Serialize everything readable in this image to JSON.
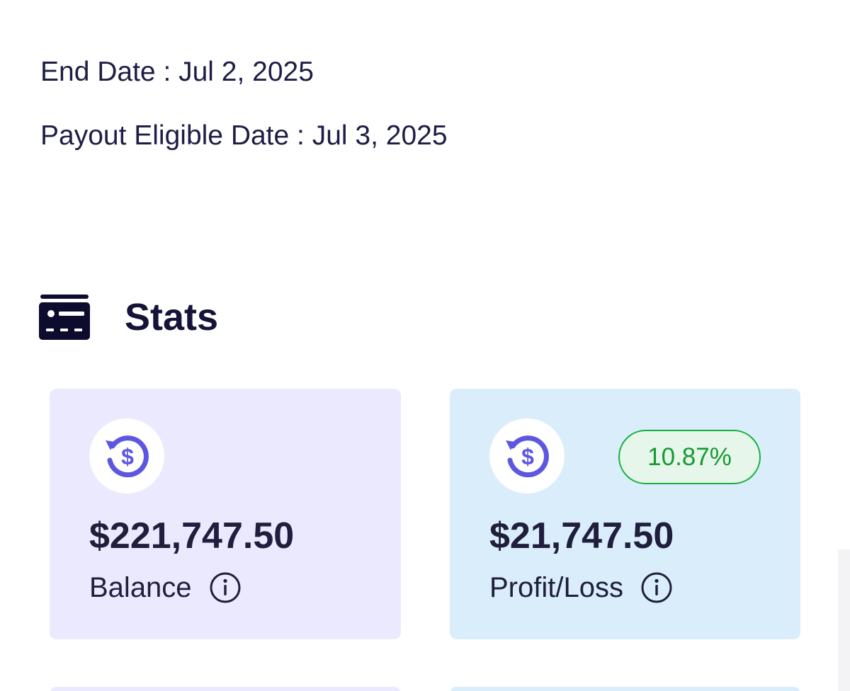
{
  "dates": {
    "end_date": "End Date : Jul 2, 2025",
    "payout_eligible_date": "Payout Eligible Date : Jul 3, 2025"
  },
  "stats": {
    "title": "Stats",
    "icon": "id-card-icon"
  },
  "cards": {
    "balance": {
      "amount": "$221,747.50",
      "label": "Balance",
      "icon": "dollar-refresh-icon",
      "info_icon": "info-icon",
      "background": "#ebe9fd"
    },
    "profit_loss": {
      "amount": "$21,747.50",
      "label": "Profit/Loss",
      "badge": "10.87%",
      "icon": "dollar-refresh-icon",
      "info_icon": "info-icon",
      "background": "#d9edfb"
    }
  },
  "colors": {
    "accent": "#5b57e0",
    "positive": "#17b03f",
    "text": "#1f1e3d"
  }
}
